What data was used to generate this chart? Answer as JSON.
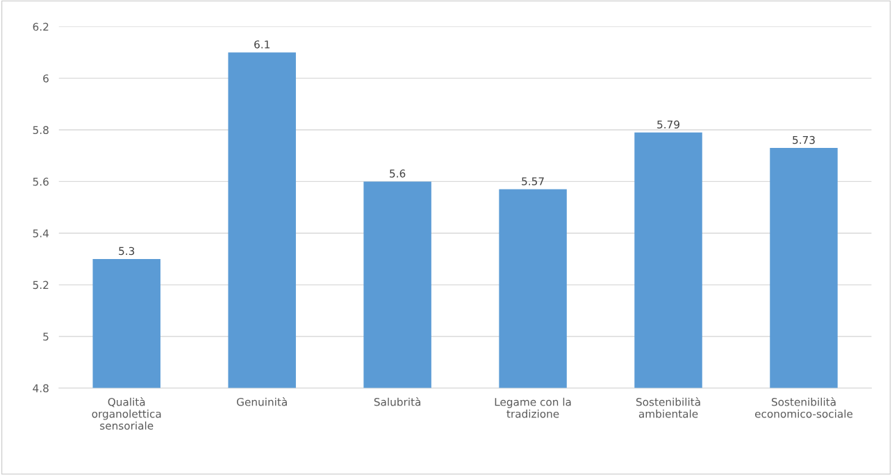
{
  "chart_data": {
    "type": "bar",
    "categories": [
      "Qualità\norganolettica\nsensoriale",
      "Genuinità",
      "Salubrità",
      "Legame con la\ntradizione",
      "Sostenibilità\nambientale",
      "Sostenibilità\neconomico-sociale"
    ],
    "values": [
      5.3,
      6.1,
      5.6,
      5.57,
      5.79,
      5.73
    ],
    "color": "#5b9bd5",
    "ylim": [
      4.8,
      6.2
    ],
    "yticks": [
      4.8,
      5,
      5.2,
      5.4,
      5.6,
      5.8,
      6,
      6.2
    ],
    "grid": "y",
    "data_labels": true,
    "legend": false
  }
}
